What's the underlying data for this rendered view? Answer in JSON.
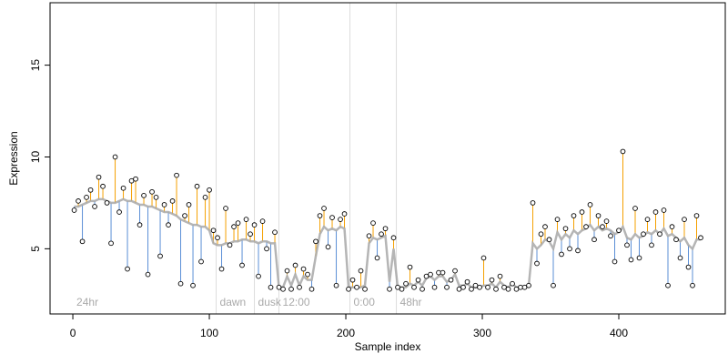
{
  "chart_data": {
    "type": "residual-scatter",
    "xlabel": "Sample index",
    "ylabel": "Expression",
    "xlim": [
      -16.7,
      478
    ],
    "ylim": [
      1.45,
      18.4
    ],
    "xticks": [
      0,
      100,
      200,
      300,
      400
    ],
    "yticks": [
      5,
      10,
      15
    ],
    "vlines": [
      105,
      133,
      151,
      203,
      237
    ],
    "phase_labels": [
      "24hr",
      "dawn",
      "dusk",
      "12:00",
      "0:00",
      "48hr"
    ],
    "point_color": "#000000",
    "fit_color": "#a8a8a8",
    "above_color": "#f5a000",
    "below_color": "#5b8fd6",
    "vline_color": "#dddddd",
    "x": [
      1,
      4,
      7,
      10,
      13,
      16,
      19,
      22,
      25,
      28,
      31,
      34,
      37,
      40,
      43,
      46,
      49,
      52,
      55,
      58,
      61,
      64,
      67,
      70,
      73,
      76,
      79,
      82,
      85,
      88,
      91,
      94,
      97,
      100,
      103,
      106,
      109,
      112,
      115,
      118,
      121,
      124,
      127,
      130,
      133,
      136,
      139,
      142,
      145,
      148,
      151,
      154,
      157,
      160,
      163,
      166,
      169,
      172,
      175,
      178,
      181,
      184,
      187,
      190,
      193,
      196,
      199,
      202,
      205,
      208,
      211,
      214,
      217,
      220,
      223,
      226,
      229,
      232,
      235,
      238,
      241,
      244,
      247,
      250,
      253,
      256,
      259,
      262,
      265,
      268,
      271,
      274,
      277,
      280,
      283,
      286,
      289,
      292,
      295,
      298,
      301,
      304,
      307,
      310,
      313,
      316,
      319,
      322,
      325,
      328,
      331,
      334,
      337,
      340,
      343,
      346,
      349,
      352,
      355,
      358,
      361,
      364,
      367,
      370,
      373,
      376,
      379,
      382,
      385,
      388,
      391,
      394,
      397,
      400,
      403,
      406,
      409,
      412,
      415,
      418,
      421,
      424,
      427,
      430,
      433,
      436,
      439,
      442,
      445,
      448,
      451,
      454,
      457,
      460
    ],
    "values": [
      7.1,
      7.6,
      5.4,
      7.8,
      8.2,
      7.3,
      8.9,
      8.4,
      7.5,
      5.3,
      10.0,
      7.0,
      8.3,
      3.9,
      8.7,
      8.8,
      6.3,
      7.9,
      3.6,
      8.1,
      7.8,
      4.6,
      7.4,
      6.3,
      7.6,
      9.0,
      3.1,
      6.8,
      7.4,
      3.0,
      8.4,
      4.3,
      7.8,
      8.2,
      6.0,
      5.6,
      3.9,
      7.2,
      5.2,
      6.2,
      6.4,
      4.1,
      6.6,
      5.8,
      6.3,
      3.5,
      6.5,
      5.0,
      2.9,
      5.9,
      2.9,
      2.8,
      3.8,
      2.8,
      4.1,
      2.9,
      3.9,
      3.6,
      2.8,
      5.4,
      6.8,
      7.2,
      5.1,
      6.7,
      3.0,
      6.6,
      6.9,
      2.8,
      3.3,
      2.9,
      3.8,
      2.8,
      5.7,
      6.4,
      4.5,
      5.8,
      6.1,
      2.8,
      5.6,
      2.9,
      2.8,
      3.1,
      4.0,
      2.9,
      3.3,
      2.8,
      3.5,
      3.6,
      2.9,
      3.7,
      3.7,
      2.9,
      3.3,
      3.8,
      2.8,
      2.9,
      3.2,
      2.8,
      3.0,
      2.9,
      4.5,
      2.9,
      3.3,
      2.8,
      3.5,
      2.9,
      2.8,
      3.1,
      2.8,
      2.9,
      2.9,
      3.0,
      7.5,
      4.2,
      5.8,
      6.2,
      5.5,
      3.0,
      6.6,
      4.7,
      6.1,
      5.0,
      6.8,
      4.9,
      7.0,
      6.2,
      7.4,
      5.5,
      6.8,
      6.2,
      6.5,
      5.7,
      4.3,
      6.0,
      10.3,
      5.2,
      4.4,
      7.2,
      4.5,
      5.8,
      6.6,
      5.2,
      7.0,
      5.8,
      7.1,
      3.0,
      6.2,
      5.5,
      4.5,
      6.6,
      4.0,
      3.0,
      6.8,
      5.6
    ],
    "fit": [
      7.3,
      7.3,
      7.4,
      7.5,
      7.6,
      7.6,
      7.7,
      7.7,
      7.6,
      7.5,
      7.5,
      7.6,
      7.7,
      7.6,
      7.6,
      7.5,
      7.4,
      7.4,
      7.3,
      7.3,
      7.2,
      7.1,
      7.0,
      7.0,
      6.9,
      6.8,
      6.6,
      6.5,
      6.4,
      6.3,
      6.3,
      6.2,
      6.2,
      6.0,
      5.3,
      5.2,
      5.2,
      5.3,
      5.3,
      5.4,
      5.4,
      5.5,
      5.5,
      5.4,
      5.4,
      5.3,
      5.4,
      5.4,
      5.3,
      5.3,
      2.9,
      2.9,
      3.5,
      3.0,
      3.6,
      3.0,
      3.5,
      3.3,
      3.3,
      4.6,
      5.8,
      6.2,
      6.0,
      6.1,
      6.0,
      6.2,
      6.1,
      2.9,
      2.9,
      2.9,
      2.9,
      3.0,
      5.3,
      5.6,
      5.5,
      5.6,
      5.7,
      3.2,
      5.0,
      2.9,
      2.9,
      2.9,
      3.1,
      3.0,
      3.2,
      3.0,
      3.4,
      3.5,
      3.3,
      3.5,
      3.5,
      3.2,
      3.3,
      3.6,
      3.0,
      3.0,
      3.1,
      2.9,
      2.9,
      2.9,
      3.0,
      3.0,
      3.1,
      2.9,
      3.2,
      3.0,
      2.9,
      3.1,
      2.9,
      2.9,
      2.9,
      3.0,
      5.3,
      5.0,
      5.2,
      5.5,
      5.4,
      5.0,
      5.9,
      5.5,
      5.8,
      5.6,
      6.0,
      5.8,
      6.0,
      6.1,
      6.3,
      6.0,
      6.2,
      6.0,
      6.1,
      6.0,
      5.8,
      5.9,
      6.2,
      5.6,
      5.5,
      5.8,
      5.6,
      5.7,
      5.9,
      5.8,
      6.0,
      5.8,
      6.1,
      5.7,
      5.8,
      5.6,
      5.4,
      5.6,
      5.2,
      5.0,
      5.5,
      5.5
    ]
  }
}
